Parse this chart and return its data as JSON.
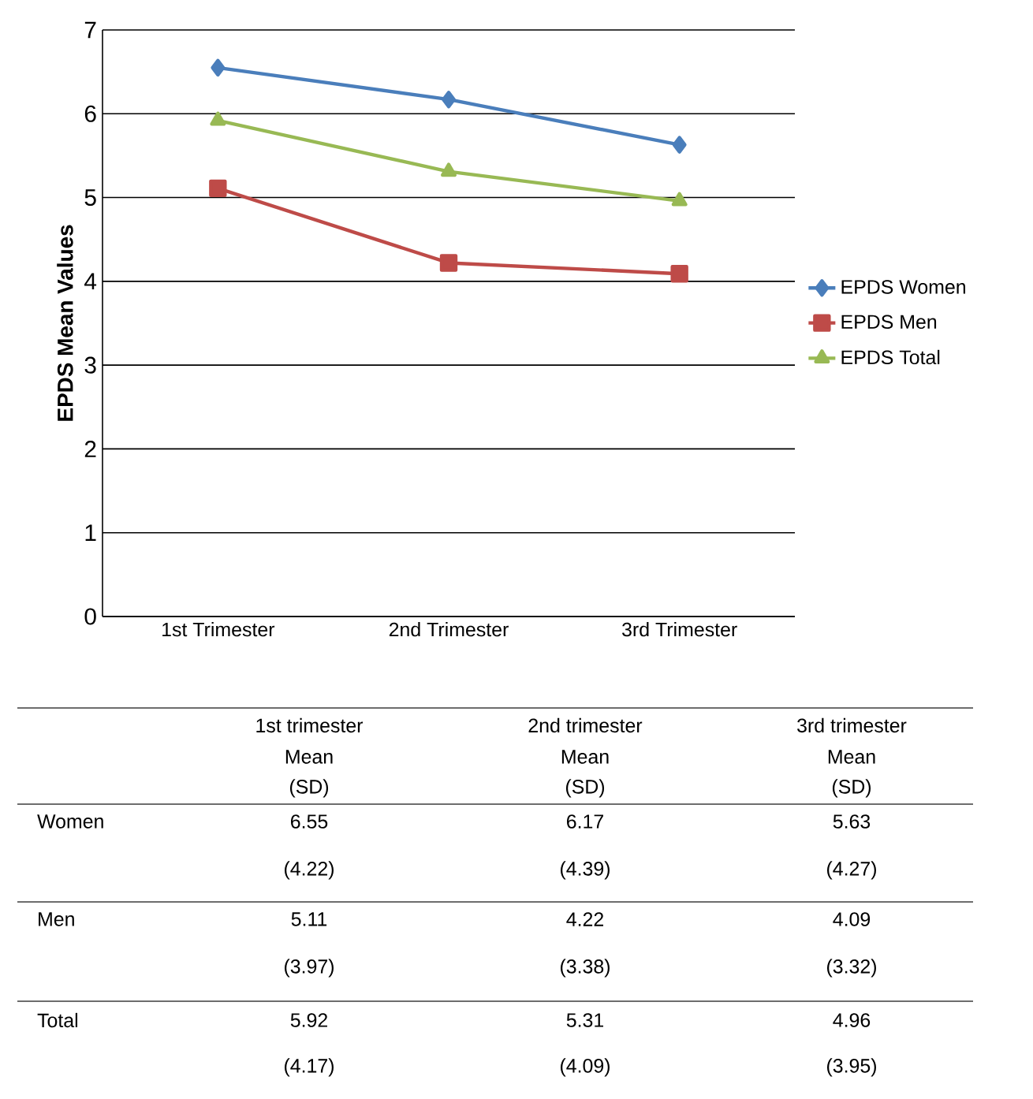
{
  "chart_data": {
    "type": "line",
    "ylabel": "EPDS Mean Values",
    "categories": [
      "1st Trimester",
      "2nd Trimester",
      "3rd Trimester"
    ],
    "series": [
      {
        "name": "EPDS Women",
        "color": "#4a7ebb",
        "marker": "diamond",
        "values": [
          6.55,
          6.17,
          5.63
        ]
      },
      {
        "name": "EPDS Men",
        "color": "#be4b48",
        "marker": "square",
        "values": [
          5.11,
          4.22,
          4.09
        ]
      },
      {
        "name": "EPDS Total",
        "color": "#98b954",
        "marker": "triangle",
        "values": [
          5.92,
          5.31,
          4.96
        ]
      }
    ],
    "ylim": [
      0,
      7
    ],
    "yticks": [
      0,
      1,
      2,
      3,
      4,
      5,
      6,
      7
    ],
    "grid": "y",
    "legend": "right",
    "line_style": "solid",
    "annotations": [
      "1st trimester",
      "Mean",
      "(SD)",
      "2nd trimester",
      "Mean",
      "(SD)",
      "3rd trimester",
      "Mean",
      "(SD)",
      "Women",
      "Men",
      "Total",
      "6.55",
      "6.17",
      "5.63",
      "(4.22)",
      "(4.39)",
      "(4.27)",
      "5.11",
      "4.22",
      "4.09",
      "(3.97)",
      "(3.38)",
      "(3.32)",
      "5.92",
      "5.31",
      "4.96",
      "(4.17)",
      "(4.09)",
      "(3.95)"
    ]
  }
}
